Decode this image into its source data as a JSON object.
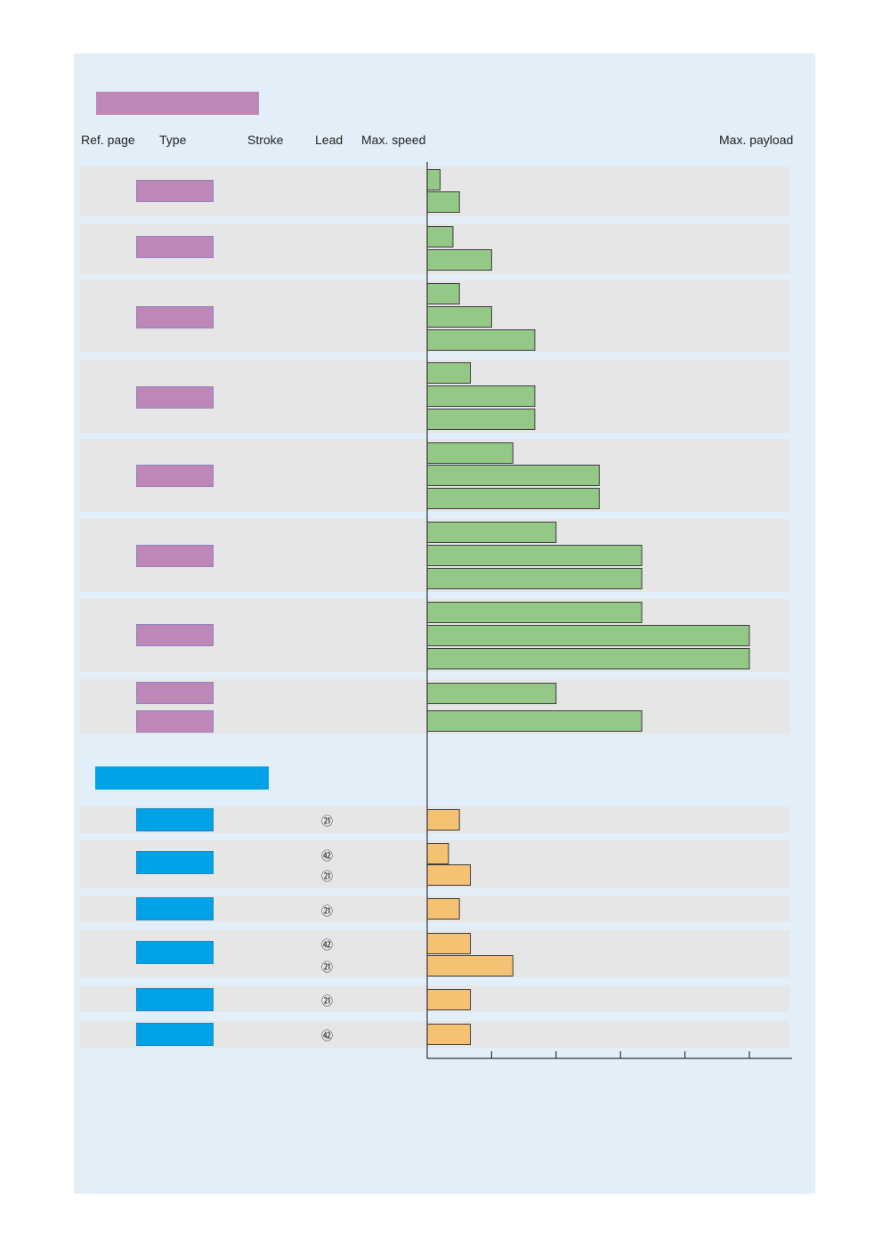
{
  "chart_data": {
    "type": "bar",
    "orientation": "horizontal",
    "colors": {
      "group1": "#94c887",
      "group2": "#f5c173",
      "swatch1": "#bf87b6",
      "swatch2": "#00a3e6",
      "row": "#e6e6e6",
      "panel": "#e2eff9"
    },
    "columns": {
      "ref_page": "Ref. page",
      "type": "Type",
      "stroke": "Stroke",
      "lead": "Lead",
      "max_speed": "Max. speed",
      "max_payload": "Max. payload"
    },
    "x_axis": {
      "ticks": [
        0,
        1,
        2,
        3,
        4,
        5
      ],
      "tick_labels": []
    },
    "groups": [
      {
        "name": "group1",
        "rows": [
          {
            "bars": [
              0.2,
              0.5
            ]
          },
          {
            "bars": [
              0.4,
              1.0
            ]
          },
          {
            "bars": [
              0.5,
              1.0,
              1.67
            ]
          },
          {
            "bars": [
              0.67,
              1.67,
              1.67
            ]
          },
          {
            "bars": [
              1.33,
              2.67,
              2.67
            ]
          },
          {
            "bars": [
              2.0,
              3.33,
              3.33
            ]
          },
          {
            "bars": [
              3.33,
              5.0,
              5.0
            ]
          },
          {
            "bars": [
              2.0,
              3.33
            ]
          }
        ]
      },
      {
        "name": "group2",
        "rows": [
          {
            "leads": [
              "㉑"
            ],
            "bars": [
              0.5
            ]
          },
          {
            "leads": [
              "㊷",
              "㉑"
            ],
            "bars": [
              0.33,
              0.67
            ]
          },
          {
            "leads": [
              "㉑"
            ],
            "bars": [
              0.5
            ]
          },
          {
            "leads": [
              "㊷",
              "㉑"
            ],
            "bars": [
              0.67,
              1.33
            ]
          },
          {
            "leads": [
              "㉑"
            ],
            "bars": [
              0.67
            ]
          },
          {
            "leads": [
              "㊷"
            ],
            "bars": [
              0.67
            ]
          }
        ]
      }
    ]
  }
}
